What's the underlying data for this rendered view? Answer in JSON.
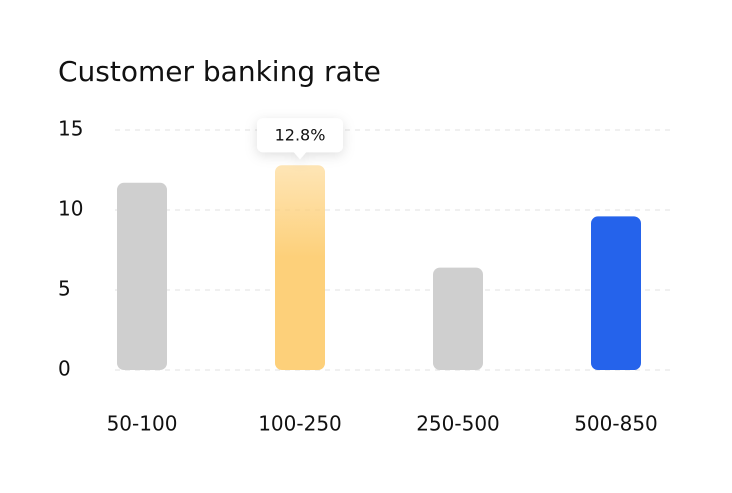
{
  "chart_data": {
    "type": "bar",
    "title": "Customer banking rate",
    "categories": [
      "50-100",
      "100-250",
      "250-500",
      "500-850"
    ],
    "values": [
      11.7,
      12.8,
      6.4,
      9.6
    ],
    "value_labels": [
      null,
      "12.8%",
      null,
      null
    ],
    "colors": [
      "#cfcfcf",
      "#fdd07a",
      "#cfcfcf",
      "#2563eb"
    ],
    "ylim": [
      0,
      15
    ],
    "yticks": [
      0,
      5,
      10,
      15
    ],
    "grid": true
  }
}
